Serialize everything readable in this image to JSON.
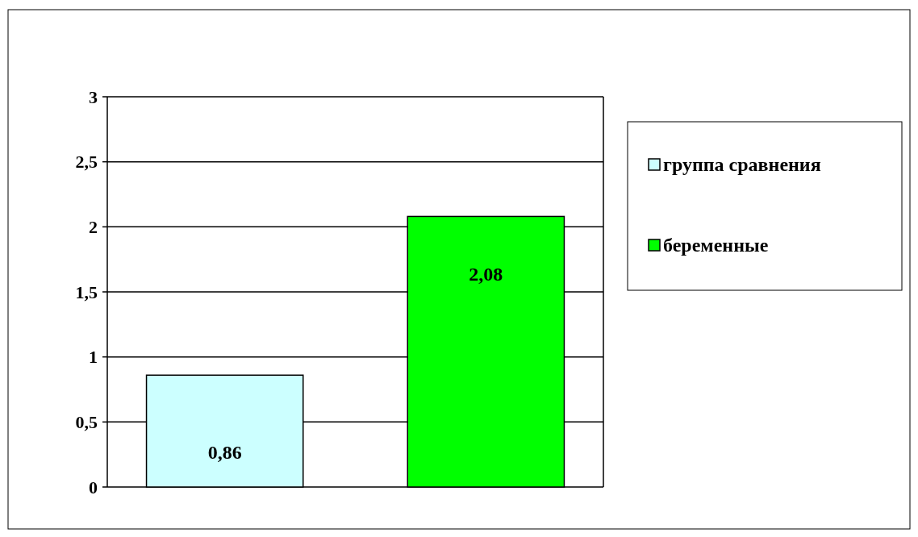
{
  "chart_data": {
    "type": "bar",
    "categories": [
      null,
      null
    ],
    "series": [
      {
        "name": "группа сравнения",
        "color": "#ccffff",
        "values": [
          0.86,
          null
        ],
        "value_labels": [
          "0,86",
          null
        ]
      },
      {
        "name": "беременные",
        "color": "#00ff00",
        "values": [
          null,
          2.08
        ],
        "value_labels": [
          null,
          "2,08"
        ]
      }
    ],
    "ylim": [
      0,
      3
    ],
    "yticks": [
      0,
      {
        "value": 0.5,
        "label": "0,5"
      },
      1,
      {
        "value": 1.5,
        "label": "1,5"
      },
      2,
      {
        "value": 2.5,
        "label": "2,5"
      },
      3
    ],
    "grid": "y",
    "legend": "right"
  }
}
